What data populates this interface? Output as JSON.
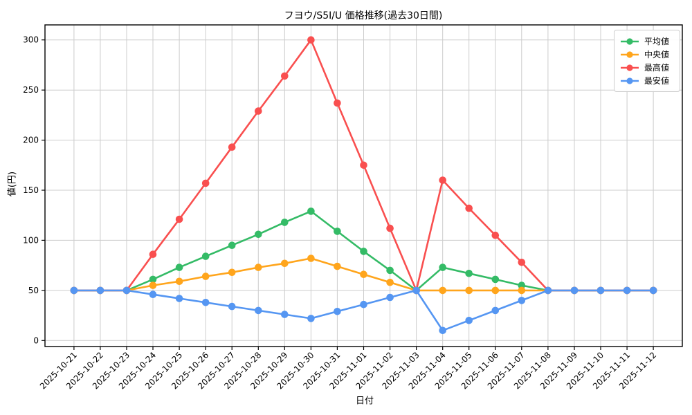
{
  "figure": {
    "title": "フヨウ/S5I/U 価格推移(過去30日間)",
    "xlabel": "日付",
    "ylabel": "値(円)"
  },
  "legend": {
    "items": [
      {
        "key": "average",
        "label": "平均値",
        "color": "#34bb66"
      },
      {
        "key": "median",
        "label": "中央値",
        "color": "#ffa51c"
      },
      {
        "key": "max",
        "label": "最高値",
        "color": "#f94f4f"
      },
      {
        "key": "min",
        "label": "最安値",
        "color": "#5596f2"
      }
    ]
  },
  "chart_data": {
    "type": "line",
    "title": "フヨウ/S5I/U 価格推移(過去30日間)",
    "xlabel": "日付",
    "ylabel": "値(円)",
    "categories": [
      "2025-10-21",
      "2025-10-22",
      "2025-10-23",
      "2025-10-24",
      "2025-10-25",
      "2025-10-26",
      "2025-10-27",
      "2025-10-28",
      "2025-10-29",
      "2025-10-30",
      "2025-10-31",
      "2025-11-01",
      "2025-11-02",
      "2025-11-03",
      "2025-11-04",
      "2025-11-05",
      "2025-11-06",
      "2025-11-07",
      "2025-11-08",
      "2025-11-09",
      "2025-11-10",
      "2025-11-11",
      "2025-11-12"
    ],
    "series": [
      {
        "key": "average",
        "name": "平均値",
        "color": "#34bb66",
        "values": [
          50,
          50,
          50,
          61,
          73,
          84,
          95,
          106,
          118,
          129,
          109,
          89,
          70,
          50,
          73,
          67,
          61,
          55,
          50,
          50,
          50,
          50,
          50
        ]
      },
      {
        "key": "median",
        "name": "中央値",
        "color": "#ffa51c",
        "values": [
          50,
          50,
          50,
          55,
          59,
          64,
          68,
          73,
          77,
          82,
          74,
          66,
          58,
          50,
          50,
          50,
          50,
          50,
          50,
          50,
          50,
          50,
          50
        ]
      },
      {
        "key": "max",
        "name": "最高値",
        "color": "#f94f4f",
        "values": [
          50,
          50,
          50,
          86,
          121,
          157,
          193,
          229,
          264,
          300,
          237,
          175,
          112,
          50,
          160,
          132,
          105,
          78,
          50,
          50,
          50,
          50,
          50
        ]
      },
      {
        "key": "min",
        "name": "最安値",
        "color": "#5596f2",
        "values": [
          50,
          50,
          50,
          46,
          42,
          38,
          34,
          30,
          26,
          22,
          29,
          36,
          43,
          50,
          10,
          20,
          30,
          40,
          50,
          50,
          50,
          50,
          50
        ]
      }
    ],
    "yticks": [
      0,
      50,
      100,
      150,
      200,
      250,
      300
    ],
    "ylim": [
      -6,
      315
    ],
    "grid": true,
    "grid_color": "#cccccc",
    "legend_position": "upper right",
    "marker": "circle"
  }
}
